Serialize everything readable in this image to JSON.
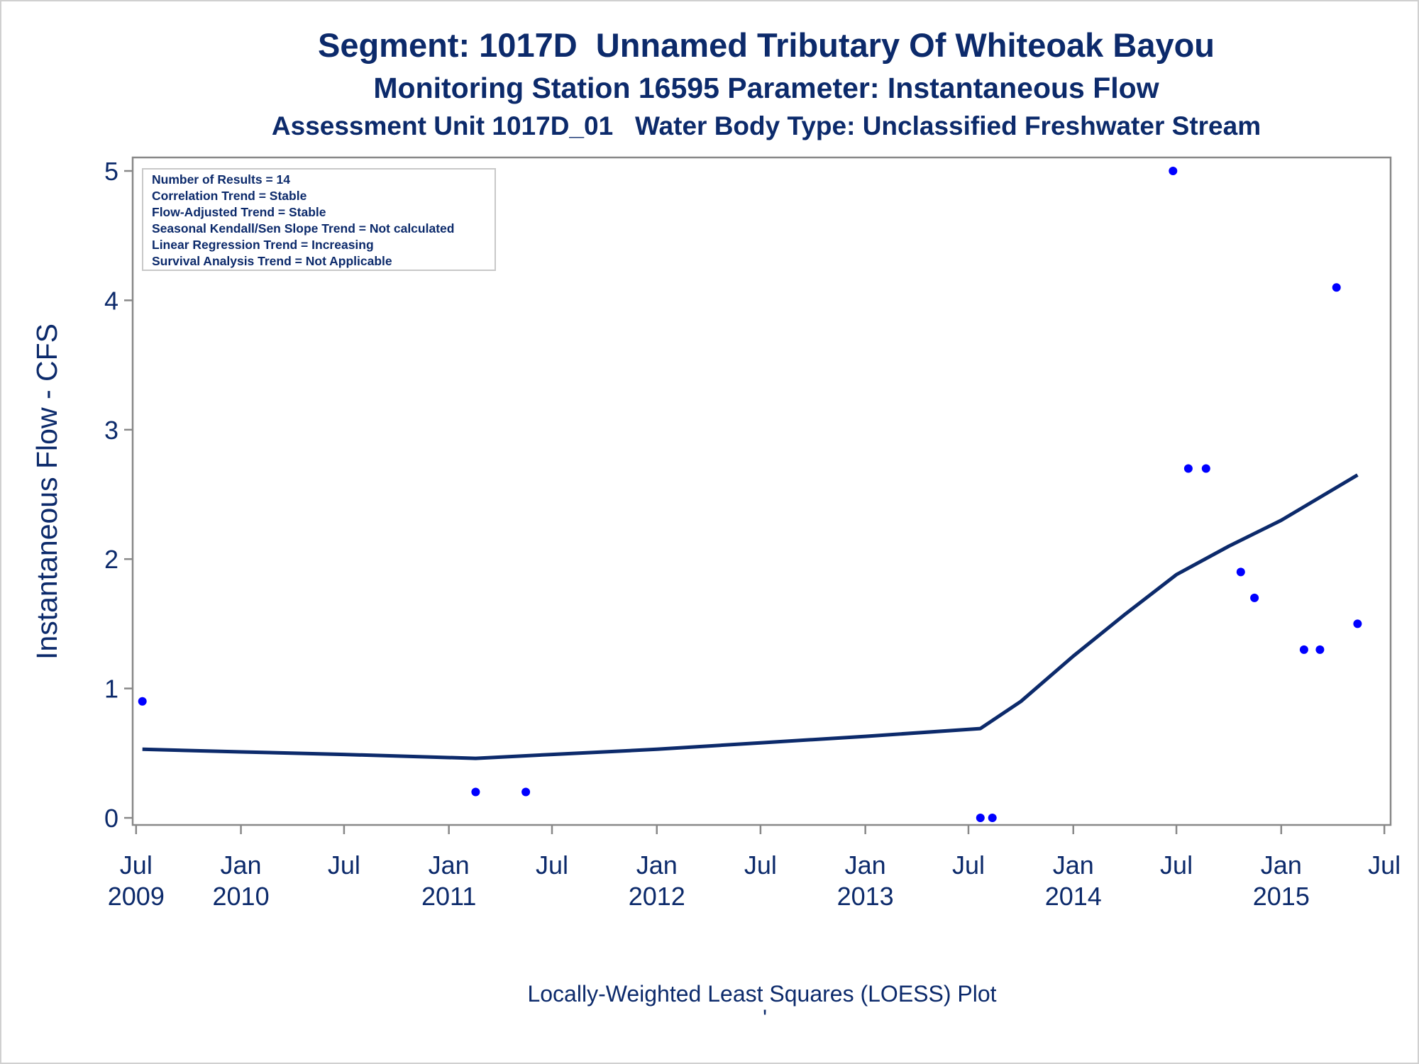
{
  "chart_data": {
    "type": "scatter",
    "title": "Segment: 1017D  Unnamed Tributary Of Whiteoak Bayou",
    "subtitle": "Monitoring Station 16595 Parameter: Instantaneous Flow",
    "subtitle2": "Assessment Unit 1017D_01   Water Body Type: Unclassified Freshwater Stream",
    "ylabel": "Instantaneous Flow - CFS",
    "xlabel": "",
    "footnote": "Locally-Weighted Least Squares (LOESS) Plot",
    "footnote_mark": "'",
    "ylim": [
      0,
      5
    ],
    "xlim": [
      "2009-06-25",
      "2015-07-12"
    ],
    "grid": false,
    "y_ticks": [
      "0",
      "1",
      "2",
      "3",
      "4",
      "5"
    ],
    "x_ticks": [
      {
        "date": "2009-07-01",
        "line1": "Jul",
        "line2": "2009"
      },
      {
        "date": "2010-01-01",
        "line1": "Jan",
        "line2": "2010"
      },
      {
        "date": "2010-07-01",
        "line1": "Jul",
        "line2": ""
      },
      {
        "date": "2011-01-01",
        "line1": "Jan",
        "line2": "2011"
      },
      {
        "date": "2011-07-01",
        "line1": "Jul",
        "line2": ""
      },
      {
        "date": "2012-01-01",
        "line1": "Jan",
        "line2": "2012"
      },
      {
        "date": "2012-07-01",
        "line1": "Jul",
        "line2": ""
      },
      {
        "date": "2013-01-01",
        "line1": "Jan",
        "line2": "2013"
      },
      {
        "date": "2013-07-01",
        "line1": "Jul",
        "line2": ""
      },
      {
        "date": "2014-01-01",
        "line1": "Jan",
        "line2": "2014"
      },
      {
        "date": "2014-07-01",
        "line1": "Jul",
        "line2": ""
      },
      {
        "date": "2015-01-01",
        "line1": "Jan",
        "line2": "2015"
      },
      {
        "date": "2015-07-01",
        "line1": "Jul",
        "line2": ""
      }
    ],
    "stats_box": {
      "lines": [
        "Number of Results = 14",
        "Correlation Trend = Stable",
        "Flow-Adjusted Trend = Stable",
        "Seasonal Kendall/Sen Slope Trend = Not calculated",
        "Linear Regression Trend = Increasing",
        "Survival Analysis Trend = Not Applicable"
      ],
      "placement": "top-left"
    },
    "series": [
      {
        "type": "scatter",
        "color": "#0000ff",
        "points": [
          {
            "x": "2009-07-12",
            "y": 0.9
          },
          {
            "x": "2011-02-17",
            "y": 0.2
          },
          {
            "x": "2011-05-16",
            "y": 0.2
          },
          {
            "x": "2013-07-22",
            "y": 0.0
          },
          {
            "x": "2013-08-12",
            "y": 0.0
          },
          {
            "x": "2014-06-25",
            "y": 5.0
          },
          {
            "x": "2014-07-22",
            "y": 2.7
          },
          {
            "x": "2014-08-22",
            "y": 2.7
          },
          {
            "x": "2014-10-22",
            "y": 1.9
          },
          {
            "x": "2014-11-15",
            "y": 1.7
          },
          {
            "x": "2015-02-10",
            "y": 1.3
          },
          {
            "x": "2015-03-10",
            "y": 1.3
          },
          {
            "x": "2015-04-08",
            "y": 4.1
          },
          {
            "x": "2015-05-15",
            "y": 1.5
          }
        ]
      },
      {
        "type": "line",
        "color": "#0c2a6b",
        "points": [
          {
            "x": "2009-07-12",
            "y": 0.53
          },
          {
            "x": "2010-01-01",
            "y": 0.51
          },
          {
            "x": "2010-07-01",
            "y": 0.49
          },
          {
            "x": "2011-02-17",
            "y": 0.46
          },
          {
            "x": "2011-07-01",
            "y": 0.49
          },
          {
            "x": "2012-01-01",
            "y": 0.53
          },
          {
            "x": "2012-07-01",
            "y": 0.58
          },
          {
            "x": "2013-01-01",
            "y": 0.63
          },
          {
            "x": "2013-07-22",
            "y": 0.69
          },
          {
            "x": "2013-10-01",
            "y": 0.9
          },
          {
            "x": "2014-01-01",
            "y": 1.25
          },
          {
            "x": "2014-04-01",
            "y": 1.57
          },
          {
            "x": "2014-07-01",
            "y": 1.88
          },
          {
            "x": "2014-10-01",
            "y": 2.1
          },
          {
            "x": "2015-01-01",
            "y": 2.3
          },
          {
            "x": "2015-05-15",
            "y": 2.65
          }
        ]
      }
    ]
  }
}
